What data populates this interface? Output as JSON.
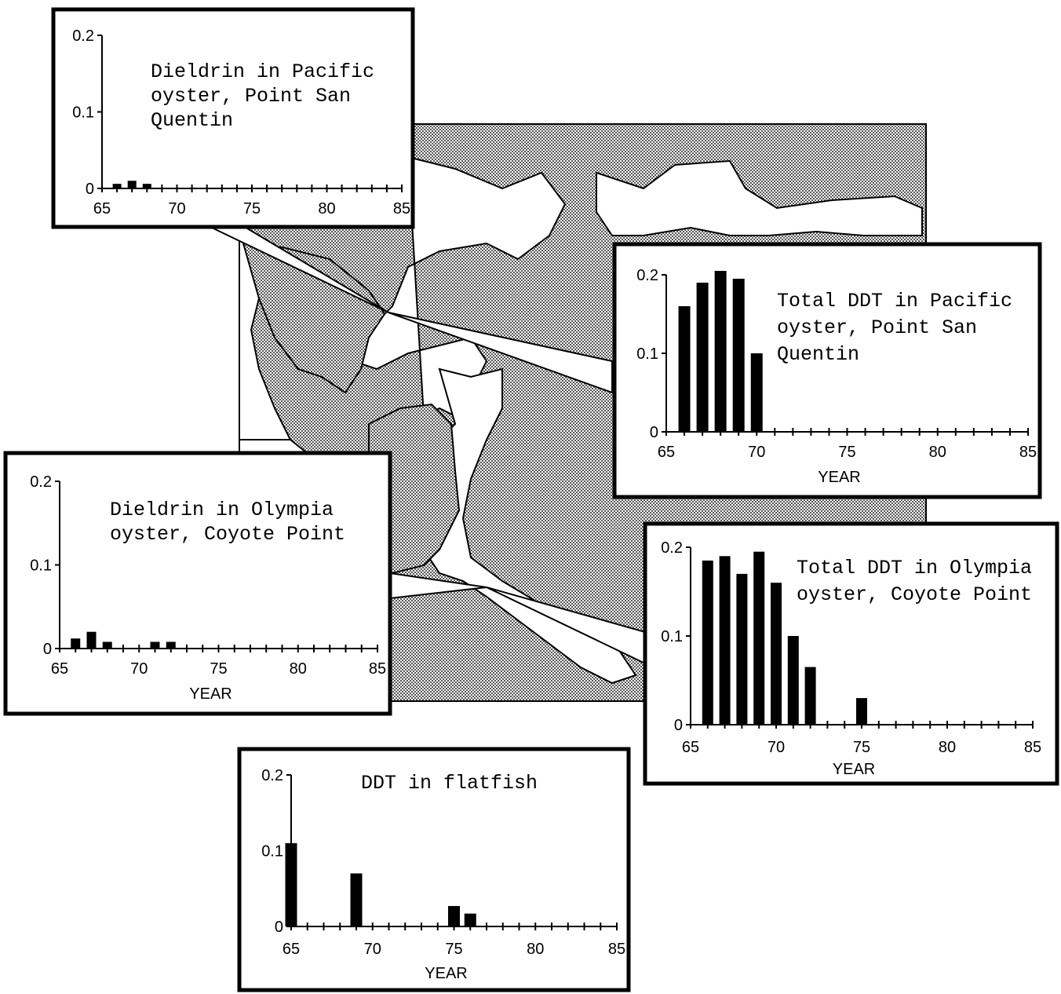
{
  "chart_data": [
    {
      "type": "bar",
      "title": [
        "Dieldrin in Pacific",
        "oyster, Point San",
        "Quentin"
      ],
      "xlabel": "",
      "ylabel": "",
      "ylim": [
        0,
        0.2
      ],
      "xlim": [
        65,
        85
      ],
      "yticks": [
        "0",
        "0.1",
        "0.2"
      ],
      "xticks": [
        "65",
        "70",
        "75",
        "80",
        "85"
      ],
      "x": [
        66,
        67,
        68
      ],
      "values": [
        0.006,
        0.01,
        0.006
      ]
    },
    {
      "type": "bar",
      "title": [
        "Total DDT in Pacific",
        "oyster, Point San",
        "Quentin"
      ],
      "xlabel": "YEAR",
      "ylabel": "",
      "ylim": [
        0,
        0.2
      ],
      "xlim": [
        65,
        85
      ],
      "yticks": [
        "0",
        "0.1",
        "0.2"
      ],
      "xticks": [
        "65",
        "70",
        "75",
        "80",
        "85"
      ],
      "x": [
        66,
        67,
        68,
        69,
        70
      ],
      "values": [
        0.16,
        0.19,
        0.205,
        0.195,
        0.1
      ]
    },
    {
      "type": "bar",
      "title": [
        "Dieldrin in Olympia",
        "oyster, Coyote Point"
      ],
      "xlabel": "YEAR",
      "ylabel": "",
      "ylim": [
        0,
        0.2
      ],
      "xlim": [
        65,
        85
      ],
      "yticks": [
        "0",
        "0.1",
        "0.2"
      ],
      "xticks": [
        "65",
        "70",
        "75",
        "80",
        "85"
      ],
      "x": [
        66,
        67,
        68,
        71,
        72
      ],
      "values": [
        0.012,
        0.02,
        0.008,
        0.008,
        0.008
      ]
    },
    {
      "type": "bar",
      "title": [
        "Total DDT in Olympia",
        "oyster, Coyote Point"
      ],
      "xlabel": "YEAR",
      "ylabel": "",
      "ylim": [
        0,
        0.2
      ],
      "xlim": [
        65,
        85
      ],
      "yticks": [
        "0",
        "0.1",
        "0.2"
      ],
      "xticks": [
        "65",
        "70",
        "75",
        "80",
        "85"
      ],
      "x": [
        66,
        67,
        68,
        69,
        70,
        71,
        72,
        75
      ],
      "values": [
        0.185,
        0.19,
        0.17,
        0.195,
        0.16,
        0.1,
        0.065,
        0.03
      ]
    },
    {
      "type": "bar",
      "title": [
        "DDT in flatfish"
      ],
      "xlabel": "YEAR",
      "ylabel": "",
      "ylim": [
        0,
        0.2
      ],
      "xlim": [
        65,
        85
      ],
      "yticks": [
        "0",
        "0.1",
        "0.2"
      ],
      "xticks": [
        "65",
        "70",
        "75",
        "80",
        "85"
      ],
      "x": [
        65,
        69,
        75,
        76
      ],
      "values": [
        0.11,
        0.07,
        0.027,
        0.017
      ]
    }
  ],
  "map": {
    "land_color": "#b5b5b5",
    "water_color": "#ffffff"
  }
}
